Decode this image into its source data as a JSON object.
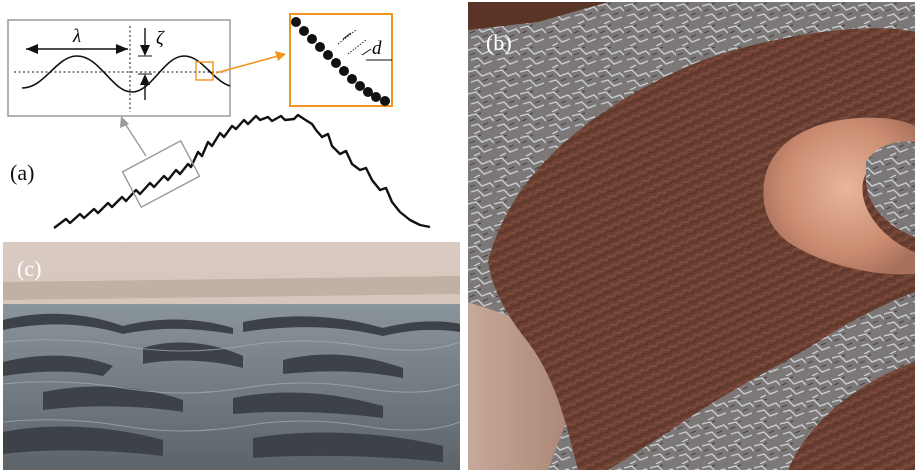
{
  "panels": {
    "a": {
      "label": "(a)"
    },
    "b": {
      "label": "(b)"
    },
    "c": {
      "label": "(c)"
    }
  },
  "symbols": {
    "wavelength": "λ",
    "amplitude": "ζ",
    "grain_diameter": "d"
  },
  "colors": {
    "inset_accent": "#f0941e",
    "frame_gray": "#9a9a9a",
    "line": "#111111",
    "dune_dark": "#6e4233",
    "dune_light": "#d49a7e",
    "rock": "#8d8a8a",
    "sky": "#d8c6bb"
  }
}
